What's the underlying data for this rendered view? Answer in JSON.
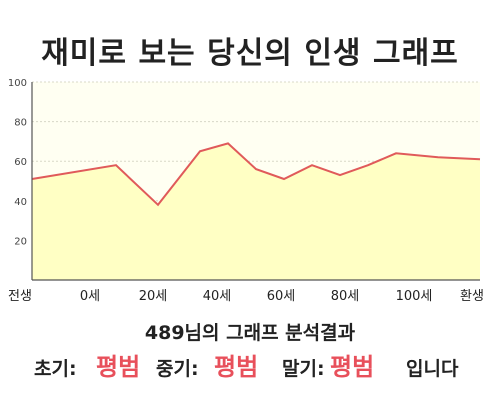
{
  "page_title": "재미로 보는 당신의 인생 그래프",
  "chart_data": {
    "type": "area",
    "title": "재미로 보는 당신의 인생 그래프",
    "x_tick_labels": [
      "전생",
      "0세",
      "20세",
      "40세",
      "60세",
      "80세",
      "100세",
      "환생"
    ],
    "x": [
      -30,
      0,
      15,
      30,
      40,
      50,
      60,
      70,
      80,
      90,
      100,
      115,
      130
    ],
    "values": [
      51,
      58,
      38,
      65,
      69,
      56,
      51,
      58,
      53,
      58,
      64,
      62,
      61
    ],
    "ylim": [
      0,
      100
    ],
    "y_ticks": [
      "100",
      "80",
      "60",
      "40",
      "20"
    ],
    "grid": true,
    "colors": {
      "line": "#e05a5a",
      "fill": "#ffffc4",
      "plot_background": "#fffff2",
      "grid": "#d8d8c8"
    }
  },
  "summary": {
    "text": "489님의 그래프 분석결과"
  },
  "results": {
    "early_label": "초기:",
    "early_value": "평범",
    "mid_label": "중기:",
    "mid_value": "평범",
    "late_label": "말기:",
    "late_value": "평범",
    "ending": "입니다"
  },
  "colors": {
    "accent": "#e8505b"
  }
}
